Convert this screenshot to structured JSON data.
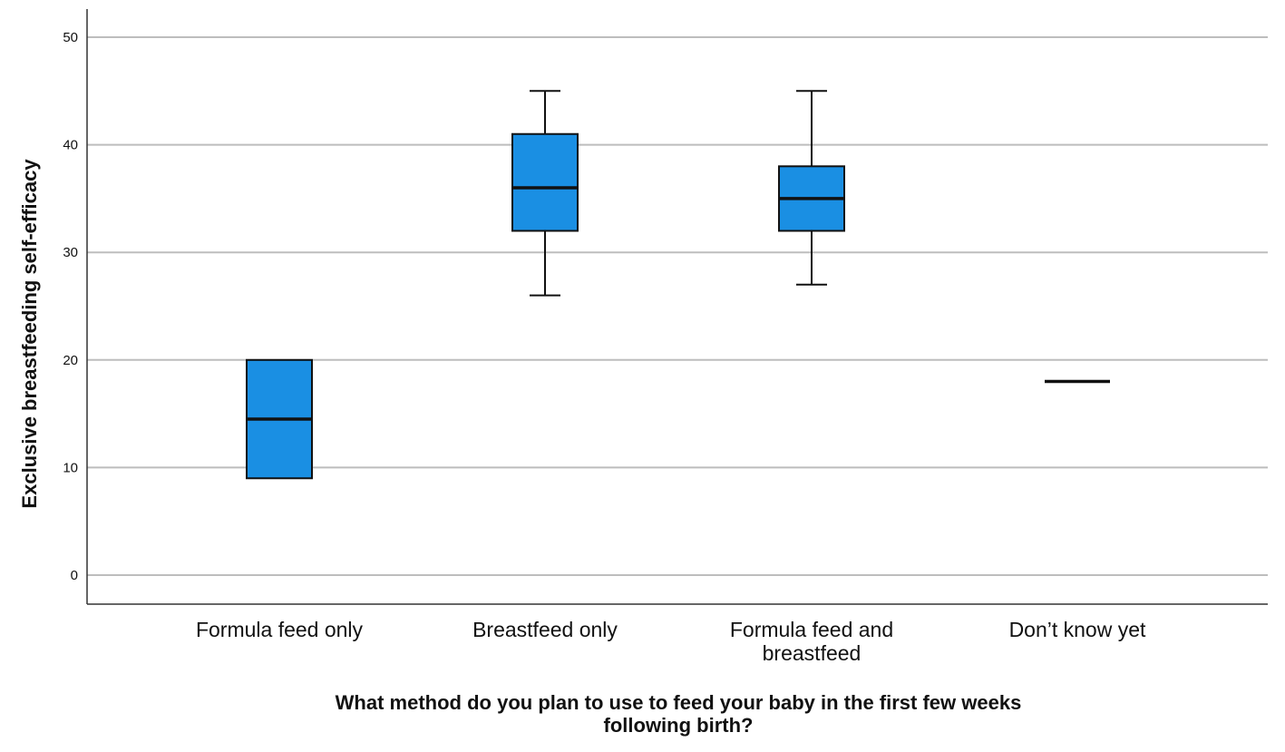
{
  "chart_data": {
    "type": "boxplot",
    "title": "",
    "ylabel": "Exclusive breastfeeding self-efficacy",
    "xlabel_lines": [
      "What method do you plan to use to feed your baby in the first few weeks",
      "following birth?"
    ],
    "ylim": [
      0,
      50
    ],
    "yticks": [
      0,
      10,
      20,
      30,
      40,
      50
    ],
    "grid": true,
    "box_color": "#1a8fe3",
    "categories": [
      {
        "label_lines": [
          "Formula feed only"
        ],
        "min": 9,
        "q1": 9,
        "median": 14.5,
        "q3": 20,
        "max": 20
      },
      {
        "label_lines": [
          "Breastfeed only"
        ],
        "min": 26,
        "q1": 32,
        "median": 36,
        "q3": 41,
        "max": 45
      },
      {
        "label_lines": [
          "Formula feed and",
          "breastfeed"
        ],
        "min": 27,
        "q1": 32,
        "median": 35,
        "q3": 38,
        "max": 45
      },
      {
        "label_lines": [
          "Don’t know yet"
        ],
        "min": 18,
        "q1": 18,
        "median": 18,
        "q3": 18,
        "max": 18
      }
    ]
  }
}
